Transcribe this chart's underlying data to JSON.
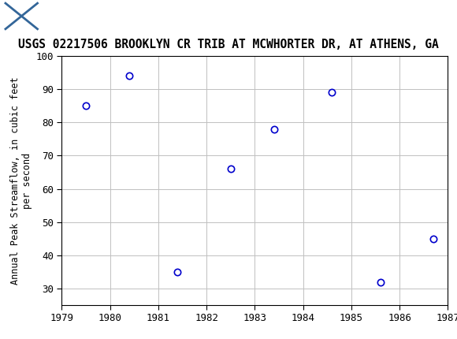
{
  "title": "USGS 02217506 BROOKLYN CR TRIB AT MCWHORTER DR, AT ATHENS, GA",
  "ylabel": "Annual Peak Streamflow, in cubic feet\nper second",
  "years": [
    1979.5,
    1980.4,
    1981.4,
    1982.5,
    1983.4,
    1984.6,
    1985.6,
    1986.7
  ],
  "values": [
    85,
    94,
    35,
    66,
    78,
    89,
    32,
    45
  ],
  "xlim": [
    1979,
    1987
  ],
  "ylim": [
    25,
    100
  ],
  "xticks": [
    1979,
    1980,
    1981,
    1982,
    1983,
    1984,
    1985,
    1986,
    1987
  ],
  "yticks": [
    30,
    40,
    50,
    60,
    70,
    80,
    90,
    100
  ],
  "marker_color": "#0000CC",
  "marker_size": 6,
  "grid_color": "#C0C0C0",
  "bg_color": "#FFFFFF",
  "plot_bg_color": "#FFFFFF",
  "header_bg_color": "#006633",
  "title_fontsize": 10.5,
  "label_fontsize": 8.5,
  "tick_fontsize": 9
}
